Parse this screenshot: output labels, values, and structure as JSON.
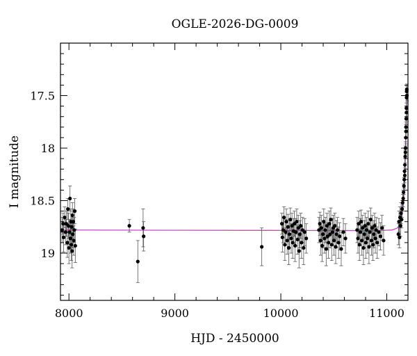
{
  "chart_data": {
    "type": "scatter",
    "title": "OGLE-2026-DG-0009",
    "xlabel": "HJD - 2450000",
    "ylabel": "I magnitude",
    "xlim": [
      7920,
      11200
    ],
    "ylim": [
      19.45,
      17.0
    ],
    "y_inverted": true,
    "x_ticks": [
      8000,
      9000,
      10000,
      11000
    ],
    "y_ticks": [
      17.5,
      18,
      18.5,
      19
    ],
    "x_tick_labels": [
      "8000",
      "9000",
      "10000",
      "11000"
    ],
    "y_tick_labels": [
      "17.5",
      "18",
      "18.5",
      "19"
    ],
    "grid": false,
    "colors": {
      "points": "#000000",
      "errorbars": "#555555",
      "model": "#cc44cc"
    },
    "model": {
      "baseline": 18.78,
      "curve": [
        [
          7920,
          18.78
        ],
        [
          10900,
          18.785
        ],
        [
          11050,
          18.78
        ],
        [
          11100,
          18.76
        ],
        [
          11120,
          18.73
        ],
        [
          11140,
          18.66
        ],
        [
          11155,
          18.55
        ],
        [
          11165,
          18.4
        ],
        [
          11172,
          18.2
        ],
        [
          11178,
          18.0
        ],
        [
          11183,
          17.75
        ],
        [
          11187,
          17.55
        ],
        [
          11190,
          17.45
        ],
        [
          11200,
          17.45
        ]
      ]
    },
    "series": [
      {
        "values": [
          [
            7935,
            18.78,
            0.12
          ],
          [
            7945,
            18.72,
            0.1
          ],
          [
            7950,
            18.85,
            0.14
          ],
          [
            7960,
            18.66,
            0.1
          ],
          [
            7968,
            18.8,
            0.12
          ],
          [
            7975,
            18.72,
            0.12
          ],
          [
            7985,
            18.9,
            0.14
          ],
          [
            7990,
            18.58,
            0.1
          ],
          [
            7995,
            18.74,
            0.12
          ],
          [
            8000,
            18.95,
            0.15
          ],
          [
            8005,
            18.8,
            0.12
          ],
          [
            8010,
            18.48,
            0.12
          ],
          [
            8015,
            18.86,
            0.14
          ],
          [
            8018,
            18.7,
            0.12
          ],
          [
            8022,
            18.92,
            0.15
          ],
          [
            8025,
            18.75,
            0.12
          ],
          [
            8030,
            18.98,
            0.16
          ],
          [
            8033,
            18.64,
            0.12
          ],
          [
            8036,
            18.82,
            0.13
          ],
          [
            8040,
            18.7,
            0.12
          ],
          [
            8045,
            18.88,
            0.14
          ],
          [
            8050,
            18.78,
            0.12
          ],
          [
            8055,
            18.6,
            0.12
          ],
          [
            8060,
            18.93,
            0.16
          ],
          [
            8570,
            18.74,
            0.06
          ],
          [
            8650,
            19.08,
            0.2
          ],
          [
            8700,
            18.76,
            0.18
          ],
          [
            8705,
            18.84,
            0.14
          ],
          [
            9820,
            18.94,
            0.18
          ],
          [
            10010,
            18.72,
            0.1
          ],
          [
            10015,
            18.85,
            0.14
          ],
          [
            10022,
            18.78,
            0.12
          ],
          [
            10030,
            18.66,
            0.1
          ],
          [
            10038,
            18.92,
            0.15
          ],
          [
            10045,
            18.8,
            0.12
          ],
          [
            10052,
            18.7,
            0.12
          ],
          [
            10060,
            18.88,
            0.13
          ],
          [
            10068,
            18.75,
            0.12
          ],
          [
            10075,
            18.95,
            0.16
          ],
          [
            10082,
            18.82,
            0.13
          ],
          [
            10090,
            18.68,
            0.11
          ],
          [
            10098,
            18.86,
            0.14
          ],
          [
            10105,
            18.74,
            0.12
          ],
          [
            10112,
            18.9,
            0.15
          ],
          [
            10120,
            18.79,
            0.12
          ],
          [
            10128,
            18.72,
            0.12
          ],
          [
            10135,
            18.93,
            0.15
          ],
          [
            10142,
            18.8,
            0.13
          ],
          [
            10150,
            18.7,
            0.12
          ],
          [
            10158,
            18.87,
            0.14
          ],
          [
            10165,
            18.76,
            0.12
          ],
          [
            10172,
            18.98,
            0.16
          ],
          [
            10180,
            18.82,
            0.13
          ],
          [
            10188,
            18.74,
            0.12
          ],
          [
            10195,
            18.9,
            0.15
          ],
          [
            10205,
            18.78,
            0.12
          ],
          [
            10215,
            18.95,
            0.16
          ],
          [
            10225,
            18.8,
            0.13
          ],
          [
            10240,
            18.86,
            0.14
          ],
          [
            10360,
            18.78,
            0.12
          ],
          [
            10368,
            18.72,
            0.11
          ],
          [
            10375,
            18.88,
            0.14
          ],
          [
            10382,
            18.76,
            0.12
          ],
          [
            10390,
            18.93,
            0.15
          ],
          [
            10398,
            18.82,
            0.13
          ],
          [
            10405,
            18.7,
            0.12
          ],
          [
            10412,
            18.86,
            0.14
          ],
          [
            10420,
            18.78,
            0.12
          ],
          [
            10428,
            18.96,
            0.16
          ],
          [
            10435,
            18.74,
            0.12
          ],
          [
            10442,
            18.84,
            0.13
          ],
          [
            10450,
            18.9,
            0.15
          ],
          [
            10458,
            18.72,
            0.12
          ],
          [
            10465,
            18.82,
            0.13
          ],
          [
            10472,
            18.68,
            0.11
          ],
          [
            10480,
            18.92,
            0.15
          ],
          [
            10488,
            18.8,
            0.13
          ],
          [
            10495,
            18.76,
            0.12
          ],
          [
            10502,
            18.88,
            0.14
          ],
          [
            10510,
            18.74,
            0.12
          ],
          [
            10518,
            18.94,
            0.16
          ],
          [
            10525,
            18.82,
            0.13
          ],
          [
            10535,
            18.78,
            0.12
          ],
          [
            10545,
            18.9,
            0.15
          ],
          [
            10555,
            18.84,
            0.13
          ],
          [
            10570,
            18.96,
            0.16
          ],
          [
            10590,
            18.8,
            0.13
          ],
          [
            10610,
            18.86,
            0.14
          ],
          [
            10720,
            18.78,
            0.12
          ],
          [
            10728,
            18.86,
            0.14
          ],
          [
            10735,
            18.72,
            0.12
          ],
          [
            10742,
            18.92,
            0.15
          ],
          [
            10750,
            18.8,
            0.13
          ],
          [
            10758,
            18.7,
            0.11
          ],
          [
            10765,
            18.88,
            0.14
          ],
          [
            10772,
            18.76,
            0.12
          ],
          [
            10780,
            18.95,
            0.16
          ],
          [
            10788,
            18.82,
            0.13
          ],
          [
            10795,
            18.74,
            0.12
          ],
          [
            10802,
            18.9,
            0.15
          ],
          [
            10810,
            18.78,
            0.12
          ],
          [
            10818,
            18.86,
            0.14
          ],
          [
            10825,
            18.72,
            0.12
          ],
          [
            10832,
            18.94,
            0.16
          ],
          [
            10840,
            18.8,
            0.13
          ],
          [
            10848,
            18.68,
            0.11
          ],
          [
            10855,
            18.88,
            0.14
          ],
          [
            10862,
            18.76,
            0.12
          ],
          [
            10870,
            18.92,
            0.15
          ],
          [
            10878,
            18.82,
            0.13
          ],
          [
            10885,
            18.74,
            0.12
          ],
          [
            10892,
            18.86,
            0.14
          ],
          [
            10900,
            18.78,
            0.12
          ],
          [
            10910,
            18.9,
            0.15
          ],
          [
            10925,
            18.8,
            0.13
          ],
          [
            10940,
            18.84,
            0.13
          ],
          [
            10955,
            18.76,
            0.12
          ],
          [
            10970,
            18.88,
            0.14
          ],
          [
            11110,
            18.82,
            0.1
          ],
          [
            11115,
            18.7,
            0.1
          ],
          [
            11120,
            18.85,
            0.1
          ],
          [
            11125,
            18.66,
            0.1
          ],
          [
            11130,
            18.74,
            0.1
          ],
          [
            11135,
            18.62,
            0.1
          ],
          [
            11140,
            18.68,
            0.08
          ],
          [
            11145,
            18.58,
            0.08
          ],
          [
            11150,
            18.52,
            0.08
          ],
          [
            11155,
            18.48,
            0.08
          ],
          [
            11158,
            18.42,
            0.08
          ],
          [
            11162,
            18.36,
            0.08
          ],
          [
            11165,
            18.3,
            0.08
          ],
          [
            11168,
            18.22,
            0.06
          ],
          [
            11171,
            18.16,
            0.06
          ],
          [
            11174,
            18.08,
            0.06
          ],
          [
            11177,
            18.0,
            0.06
          ],
          [
            11179,
            17.9,
            0.06
          ],
          [
            11181,
            17.8,
            0.05
          ],
          [
            11183,
            17.72,
            0.05
          ],
          [
            11185,
            17.62,
            0.05
          ],
          [
            11187,
            17.52,
            0.05
          ],
          [
            11188,
            17.46,
            0.05
          ],
          [
            11189,
            17.44,
            0.05
          ],
          [
            11190,
            17.5,
            0.05
          ],
          [
            11186,
            17.66,
            0.05
          ],
          [
            11182,
            17.84,
            0.06
          ],
          [
            11176,
            18.04,
            0.06
          ],
          [
            11170,
            18.26,
            0.07
          ]
        ]
      }
    ]
  }
}
